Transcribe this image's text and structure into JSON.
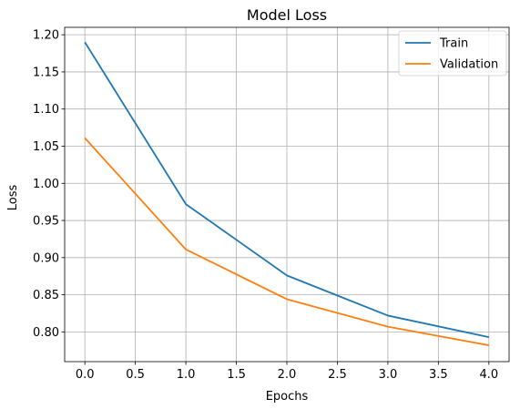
{
  "chart_data": {
    "type": "line",
    "title": "Model Loss",
    "xlabel": "Epochs",
    "ylabel": "Loss",
    "x": [
      0,
      1,
      2,
      3,
      4
    ],
    "xlim": [
      -0.2,
      4.2
    ],
    "ylim": [
      0.76,
      1.21
    ],
    "xticks": [
      "0.0",
      "0.5",
      "1.0",
      "1.5",
      "2.0",
      "2.5",
      "3.0",
      "3.5",
      "4.0"
    ],
    "yticks": [
      "0.80",
      "0.85",
      "0.90",
      "0.95",
      "1.00",
      "1.05",
      "1.10",
      "1.15",
      "1.20"
    ],
    "grid": true,
    "legend_position": "top-right",
    "series": [
      {
        "name": "Train",
        "color": "#1f77b4",
        "values": [
          1.19,
          0.972,
          0.876,
          0.822,
          0.793
        ]
      },
      {
        "name": "Validation",
        "color": "#ff7f0e",
        "values": [
          1.061,
          0.911,
          0.844,
          0.807,
          0.782
        ]
      }
    ]
  }
}
